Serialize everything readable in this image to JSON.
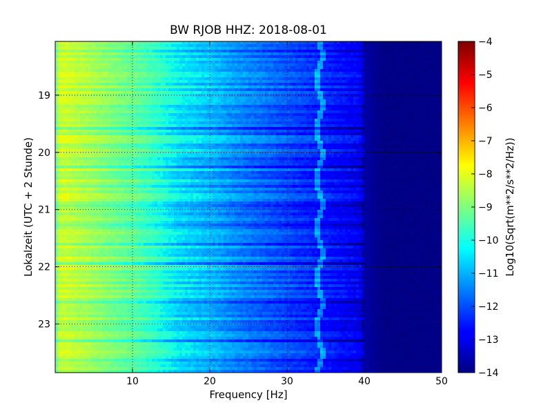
{
  "chart_data": {
    "type": "heatmap",
    "title": "BW RJOB HHZ: 2018-08-01",
    "xlabel": "Frequency [Hz]",
    "ylabel": "Lokalzeit (UTC + 2 Stunde)",
    "xlim": [
      0,
      50
    ],
    "ylim": [
      18.06,
      23.85
    ],
    "y_inverted": true,
    "x_ticks": [
      10,
      20,
      30,
      40,
      50
    ],
    "x_tick_labels": [
      "10",
      "20",
      "30",
      "40",
      "50"
    ],
    "y_ticks": [
      19,
      20,
      21,
      22,
      23
    ],
    "y_tick_labels": [
      "19",
      "20",
      "21",
      "22",
      "23"
    ],
    "grid": true,
    "colormap": "jet",
    "colorbar": {
      "label": "Log10(Sqrt(m**2/s**2/Hz))",
      "range": [
        -14,
        -4
      ],
      "ticks": [
        -4,
        -5,
        -6,
        -7,
        -8,
        -9,
        -10,
        -11,
        -12,
        -13,
        -14
      ],
      "tick_labels": [
        "−4",
        "−5",
        "−6",
        "−7",
        "−8",
        "−9",
        "−10",
        "−11",
        "−12",
        "−13",
        "−14"
      ]
    },
    "frequency_profile": {
      "x": [
        0,
        0.5,
        1,
        2,
        3,
        4,
        5,
        6,
        7,
        8,
        9,
        10,
        11,
        12,
        13,
        14,
        15,
        16,
        17,
        18,
        19,
        20,
        21,
        22,
        23,
        24,
        25,
        26,
        27,
        28,
        29,
        30,
        31,
        32,
        33,
        34,
        35,
        36,
        37,
        38,
        39,
        39.5,
        40,
        41,
        42,
        43,
        50
      ],
      "values": [
        -9.3,
        -8.2,
        -8.0,
        -8.15,
        -8.3,
        -8.4,
        -8.6,
        -8.75,
        -8.9,
        -9.05,
        -9.2,
        -9.3,
        -9.5,
        -9.7,
        -9.9,
        -10.1,
        -10.3,
        -10.5,
        -10.6,
        -10.7,
        -10.8,
        -10.9,
        -11.0,
        -11.15,
        -11.3,
        -11.4,
        -11.5,
        -11.6,
        -11.7,
        -11.8,
        -11.9,
        -12.0,
        -12.1,
        -12.2,
        -12.3,
        -12.4,
        -12.5,
        -12.6,
        -12.7,
        -12.8,
        -12.9,
        -13.0,
        -13.6,
        -13.8,
        -13.9,
        -13.95,
        -13.95
      ]
    },
    "tonal_line": {
      "frequency_hz": 34.2,
      "excess_log10": 1.2
    }
  }
}
